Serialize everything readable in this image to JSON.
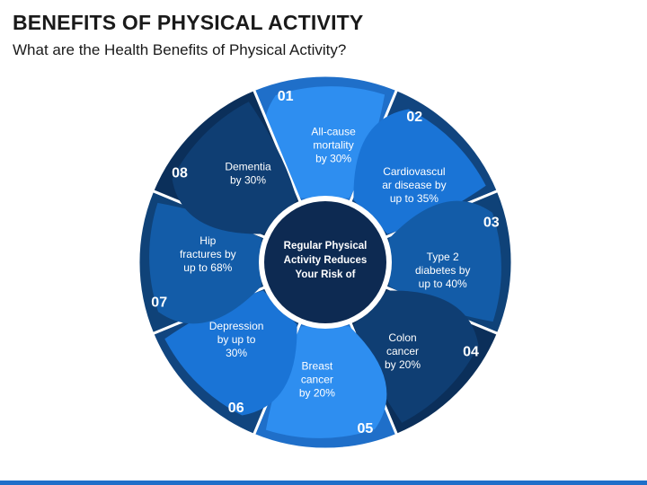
{
  "title": "BENEFITS OF PHYSICAL ACTIVITY",
  "subtitle": "What are the Health Benefits of Physical Activity?",
  "center": {
    "lines": [
      "Regular Physical",
      "Activity Reduces",
      "Your Risk of"
    ],
    "color": "#0d2a52"
  },
  "segments": [
    {
      "num": "01",
      "label_lines": [
        "All-cause",
        "mortality",
        "by 30%"
      ],
      "outer_color": "#1f6fc9",
      "inner_color": "#2e8ef0"
    },
    {
      "num": "02",
      "label_lines": [
        "Cardiovascul",
        "ar disease by",
        "up to 35%"
      ],
      "outer_color": "#11457f",
      "inner_color": "#1a74d6"
    },
    {
      "num": "03",
      "label_lines": [
        "Type 2",
        "diabetes by",
        "up to 40%"
      ],
      "outer_color": "#0f4278",
      "inner_color": "#135ca8"
    },
    {
      "num": "04",
      "label_lines": [
        "Colon",
        "cancer",
        "by 20%"
      ],
      "outer_color": "#0b2f5a",
      "inner_color": "#0f3e73"
    },
    {
      "num": "05",
      "label_lines": [
        "Breast",
        "cancer",
        "by 20%"
      ],
      "outer_color": "#1f6fc9",
      "inner_color": "#2e8ef0"
    },
    {
      "num": "06",
      "label_lines": [
        "Depression",
        "by up to",
        "30%"
      ],
      "outer_color": "#11457f",
      "inner_color": "#1a74d6"
    },
    {
      "num": "07",
      "label_lines": [
        "Hip",
        "fractures by",
        "up to 68%"
      ],
      "outer_color": "#0f4278",
      "inner_color": "#135ca8"
    },
    {
      "num": "08",
      "label_lines": [
        "Dementia",
        "by 30%"
      ],
      "outer_color": "#0b2f5a",
      "inner_color": "#0f3e73"
    }
  ]
}
